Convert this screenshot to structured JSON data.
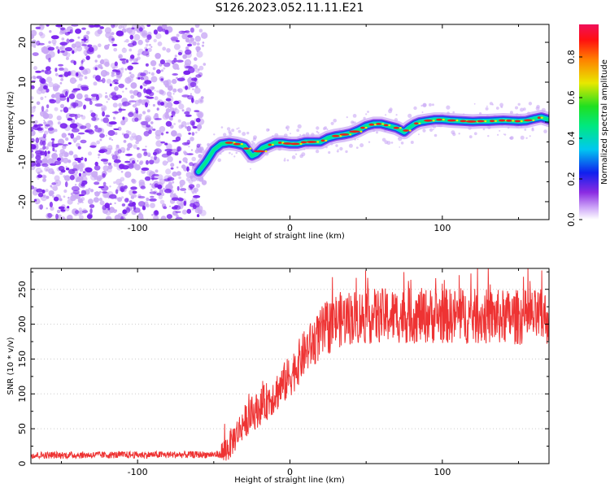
{
  "title": "S126.2023.052.11.11.E21",
  "colors": {
    "snr_line": "#ee3333",
    "ridge_outer": "#1050e0",
    "ridge_core": "#00e890",
    "ridge_peak": "#e82020",
    "noise_purple": "#7a22ee",
    "noise_light": "#c9a8f5",
    "grid": "#cccccc"
  },
  "chart_data": [
    {
      "type": "heatmap",
      "xlabel": "Height of straight line (km)",
      "ylabel": "Frequency (Hz)",
      "xlim": [
        -170,
        170
      ],
      "ylim": [
        -24.5,
        24.5
      ],
      "xticks": [
        -100,
        0,
        100
      ],
      "yticks": [
        -20,
        -10,
        0,
        10,
        20
      ],
      "noise_region_x": [
        -170,
        -60
      ],
      "ridge": {
        "x": [
          -60,
          -55,
          -50,
          -45,
          -40,
          -35,
          -30,
          -25,
          -22,
          -18,
          -15,
          -10,
          -5,
          0,
          5,
          10,
          15,
          20,
          25,
          30,
          35,
          40,
          45,
          50,
          55,
          60,
          65,
          70,
          75,
          78,
          82,
          85,
          90,
          95,
          100,
          105,
          110,
          115,
          120,
          125,
          130,
          135,
          140,
          145,
          150,
          155,
          160,
          165,
          170
        ],
        "y": [
          -12.5,
          -10,
          -7,
          -5.5,
          -5.2,
          -5.5,
          -6,
          -8.5,
          -8,
          -6.5,
          -6,
          -5.2,
          -5.2,
          -5.5,
          -5.5,
          -5,
          -5,
          -5,
          -4,
          -3.5,
          -3.2,
          -2.8,
          -2,
          -1,
          -0.5,
          -0.5,
          -1,
          -1.5,
          -2.5,
          -1.5,
          -0.5,
          0,
          0.3,
          0.6,
          0.6,
          0.4,
          0.3,
          0.2,
          0.1,
          0.2,
          0.2,
          0.3,
          0.4,
          0.3,
          0.2,
          0.3,
          0.8,
          1.2,
          0.6
        ]
      },
      "colorbar": {
        "label": "Normalized spectral amplitude",
        "ticks": [
          "0.0",
          "0.2",
          "0.4",
          "0.6",
          "0.8"
        ],
        "range": [
          0,
          0.96
        ]
      }
    },
    {
      "type": "line",
      "xlabel": "Height of straight line (km)",
      "ylabel": "SNR (10 * v/v)",
      "xlim": [
        -170,
        170
      ],
      "ylim": [
        0,
        280
      ],
      "xticks": [
        -100,
        0,
        100
      ],
      "yticks": [
        0,
        50,
        100,
        150,
        200,
        250
      ],
      "trend": {
        "x": [
          -170,
          -45,
          -40,
          -30,
          -20,
          -10,
          0,
          10,
          20,
          30,
          40,
          60,
          100,
          140,
          170
        ],
        "y": [
          12,
          13,
          25,
          60,
          80,
          100,
          125,
          160,
          185,
          205,
          210,
          212,
          212,
          210,
          210
        ]
      }
    }
  ]
}
